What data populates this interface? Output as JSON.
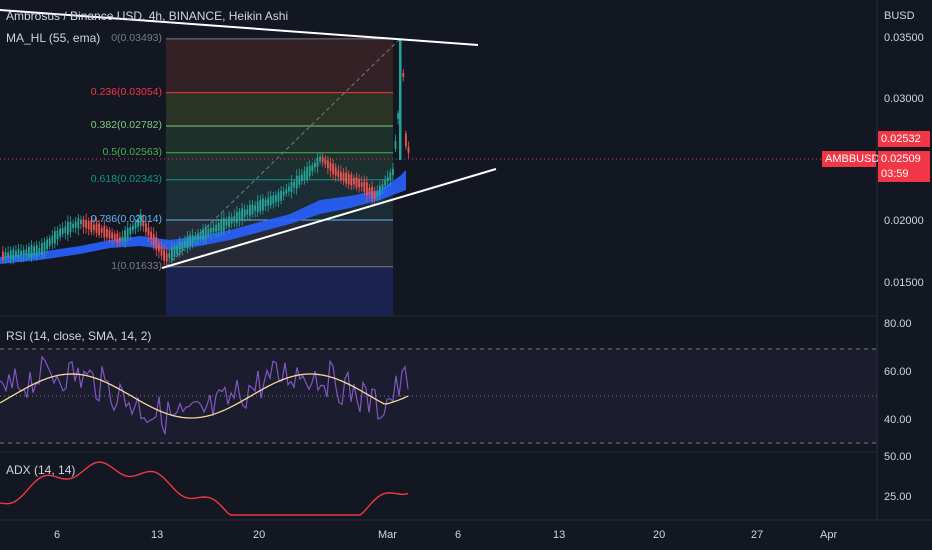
{
  "header": {
    "symbol_title": "Ambrosus / Binance USD, 4h, BINANCE, Heikin Ashi",
    "indicator_ma": "MA_HL (55, ema)",
    "currency": "BUSD"
  },
  "price_axis": {
    "ticks": [
      "0.03500",
      "0.03000",
      "0.02500",
      "0.02000",
      "0.01500"
    ],
    "tick_values": [
      0.035,
      0.03,
      0.025,
      0.02,
      0.015
    ],
    "high_tag": "0.02532",
    "symbol_tag": "AMBBUSD",
    "current_price": "0.02509",
    "countdown": "03:59"
  },
  "fib_levels": [
    {
      "label": "0(0.03493)",
      "value": 0.03493,
      "color": "#787b86"
    },
    {
      "label": "0.236(0.03054)",
      "value": 0.03054,
      "color": "#f23645"
    },
    {
      "label": "0.382(0.02782)",
      "value": 0.02782,
      "color": "#81c784"
    },
    {
      "label": "0.5(0.02563)",
      "value": 0.02563,
      "color": "#4caf50"
    },
    {
      "label": "0.618(0.02343)",
      "value": 0.02343,
      "color": "#089981"
    },
    {
      "label": "0.786(0.02014)",
      "value": 0.02014,
      "color": "#64b5f6"
    },
    {
      "label": "1(0.01633)",
      "value": 0.01633,
      "color": "#787b86"
    }
  ],
  "rsi": {
    "label": "RSI (14, close, SMA, 14, 2)",
    "ticks": [
      "80.00",
      "60.00",
      "40.00"
    ],
    "tick_values": [
      80,
      60,
      40
    ]
  },
  "adx": {
    "label": "ADX (14, 14)",
    "ticks": [
      "50.00",
      "25.00"
    ],
    "tick_values": [
      50,
      25
    ]
  },
  "time_axis": {
    "labels": [
      "6",
      "13",
      "20",
      "Mar",
      "6",
      "13",
      "20",
      "27",
      "Apr"
    ]
  },
  "colors": {
    "background": "#131722",
    "bull": "#26a69a",
    "bear": "#ef5350",
    "ma_band": "#2962ff",
    "rsi_line": "#7e57c2",
    "rsi_ma": "#f5d89a",
    "adx_line": "#f23645",
    "price_tag": "#f23645"
  }
}
